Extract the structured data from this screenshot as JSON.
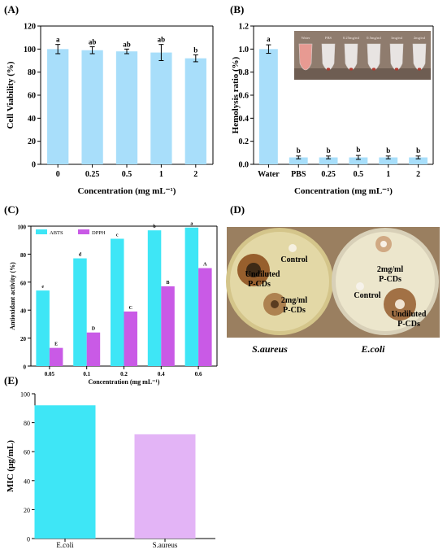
{
  "colors": {
    "light_blue": "#a8defa",
    "cyan": "#3ee6f6",
    "magenta": "#c95ae6",
    "lavender": "#e3b4f6",
    "axis": "#000000",
    "plate_bg": "#9a7f60",
    "agar_a": "#e3d8a6",
    "agar_b": "#ece6cc",
    "halo": "#8a4a18"
  },
  "chart_data": [
    {
      "panel": "(A)",
      "type": "bar",
      "categories": [
        "0",
        "0.25",
        "0.5",
        "1",
        "2"
      ],
      "values": [
        100,
        99,
        98,
        97,
        92
      ],
      "errors": [
        4,
        3,
        2,
        7,
        3
      ],
      "letters": [
        "a",
        "ab",
        "ab",
        "ab",
        "b"
      ],
      "xlabel": "Concentration (mg mL⁻¹)",
      "ylabel": "Cell Viability (%)",
      "ylim": [
        0,
        120
      ],
      "yticks": [
        "0",
        "20",
        "40",
        "60",
        "80",
        "100",
        "120"
      ],
      "grid": false
    },
    {
      "panel": "(B)",
      "type": "bar",
      "categories": [
        "Water",
        "PBS",
        "0.25",
        "0.5",
        "1",
        "2"
      ],
      "values": [
        1.0,
        0.06,
        0.06,
        0.06,
        0.06,
        0.06
      ],
      "errors": [
        0.03,
        0.005,
        0.005,
        0.01,
        0.005,
        0.005
      ],
      "letters": [
        "a",
        "b",
        "b",
        "b",
        "b",
        "b"
      ],
      "xlabel": "Concentration (mg mL⁻¹)",
      "ylabel": "Hemolysis ratio (%)",
      "ylim": [
        0,
        1.2
      ],
      "yticks": [
        "0.0",
        "0.2",
        "0.4",
        "0.6",
        "0.8",
        "1.0",
        "1.2"
      ],
      "grid": false,
      "inset_labels": [
        "Water",
        "PBS",
        "0.25mg/ml",
        "0.5mg/ml",
        "1mg/ml",
        "2mg/ml"
      ]
    },
    {
      "panel": "(C)",
      "type": "bar",
      "categories": [
        "0.05",
        "0.1",
        "0.2",
        "0.4",
        "0.6"
      ],
      "series": [
        {
          "name": "ABTS",
          "values": [
            54,
            77,
            91,
            97,
            99
          ],
          "letters": [
            "e",
            "d",
            "c",
            "b",
            "a"
          ]
        },
        {
          "name": "DPPH",
          "values": [
            13,
            24,
            39,
            57,
            70
          ],
          "letters": [
            "E",
            "D",
            "C",
            "B",
            "A"
          ]
        }
      ],
      "xlabel": "Concentration (mg mL⁻¹)",
      "ylabel": "Antioxidant activity (%)",
      "ylim": [
        0,
        100
      ],
      "yticks": [
        "0",
        "20",
        "40",
        "60",
        "80",
        "100"
      ],
      "legend": "top-left",
      "grid": false
    },
    {
      "panel": "(E)",
      "type": "bar",
      "categories": [
        "E.coli",
        "S.aureus"
      ],
      "values": [
        92,
        72
      ],
      "xlabel": "",
      "ylabel": "MIC (μg/mL)",
      "ylim": [
        0,
        100
      ],
      "yticks": [
        "0",
        "20",
        "40",
        "60",
        "80",
        "100"
      ],
      "grid": false
    }
  ],
  "panel_d": {
    "label": "(D)",
    "left_plate": {
      "caption": "S.aureus",
      "labels": [
        "Control",
        "Undiluted",
        "P-CDs",
        "2mg/ml",
        "P-CDs"
      ]
    },
    "right_plate": {
      "caption": "E.coli",
      "labels": [
        "2mg/ml",
        "P-CDs",
        "Control",
        "Undiluted",
        "P-CDs"
      ]
    }
  }
}
